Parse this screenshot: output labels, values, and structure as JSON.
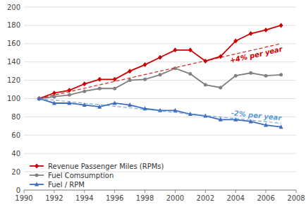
{
  "chart_data": {
    "type": "line",
    "x": [
      1991,
      1992,
      1993,
      1994,
      1995,
      1996,
      1997,
      1998,
      1999,
      2000,
      2001,
      2002,
      2003,
      2004,
      2005,
      2006,
      2007
    ],
    "series": [
      {
        "name": "Revenue Passenger Miles (RPMs)",
        "color": "#cc0000",
        "marker": "diamond",
        "values": [
          100,
          106,
          109,
          116,
          121,
          121,
          130,
          137,
          145,
          153,
          153,
          141,
          146,
          163,
          171,
          175,
          180
        ]
      },
      {
        "name": "Fuel Comsumption",
        "color": "#808080",
        "marker": "circle",
        "values": [
          100,
          102,
          104,
          108,
          111,
          111,
          120,
          121,
          126,
          133,
          127,
          115,
          112,
          125,
          128,
          125,
          126
        ]
      },
      {
        "name": "Fuel / RPM",
        "color": "#3f6bbf",
        "marker": "triangle",
        "values": [
          100,
          95,
          95,
          93,
          91,
          95,
          93,
          89,
          87,
          87,
          83,
          81,
          77,
          77,
          75,
          71,
          69
        ]
      },
      {
        "color": "#cc0000",
        "line_style": "dashed",
        "x": [
          1991,
          2007
        ],
        "values": [
          100,
          160
        ],
        "annotation": "+4%  per year"
      },
      {
        "color": "#5b9bd5",
        "line_style": "dashed",
        "x": [
          1991,
          2007
        ],
        "values": [
          100,
          73
        ],
        "annotation": "-2%  per year"
      }
    ],
    "xlim": [
      1990,
      2008
    ],
    "xticks": [
      1990,
      1992,
      1994,
      1996,
      1998,
      2000,
      2002,
      2004,
      2006,
      2008
    ],
    "ylim": [
      0,
      200
    ],
    "yticks": [
      0,
      20,
      40,
      60,
      80,
      100,
      120,
      140,
      160,
      180,
      200
    ],
    "grid": true,
    "legend": "lower left"
  }
}
